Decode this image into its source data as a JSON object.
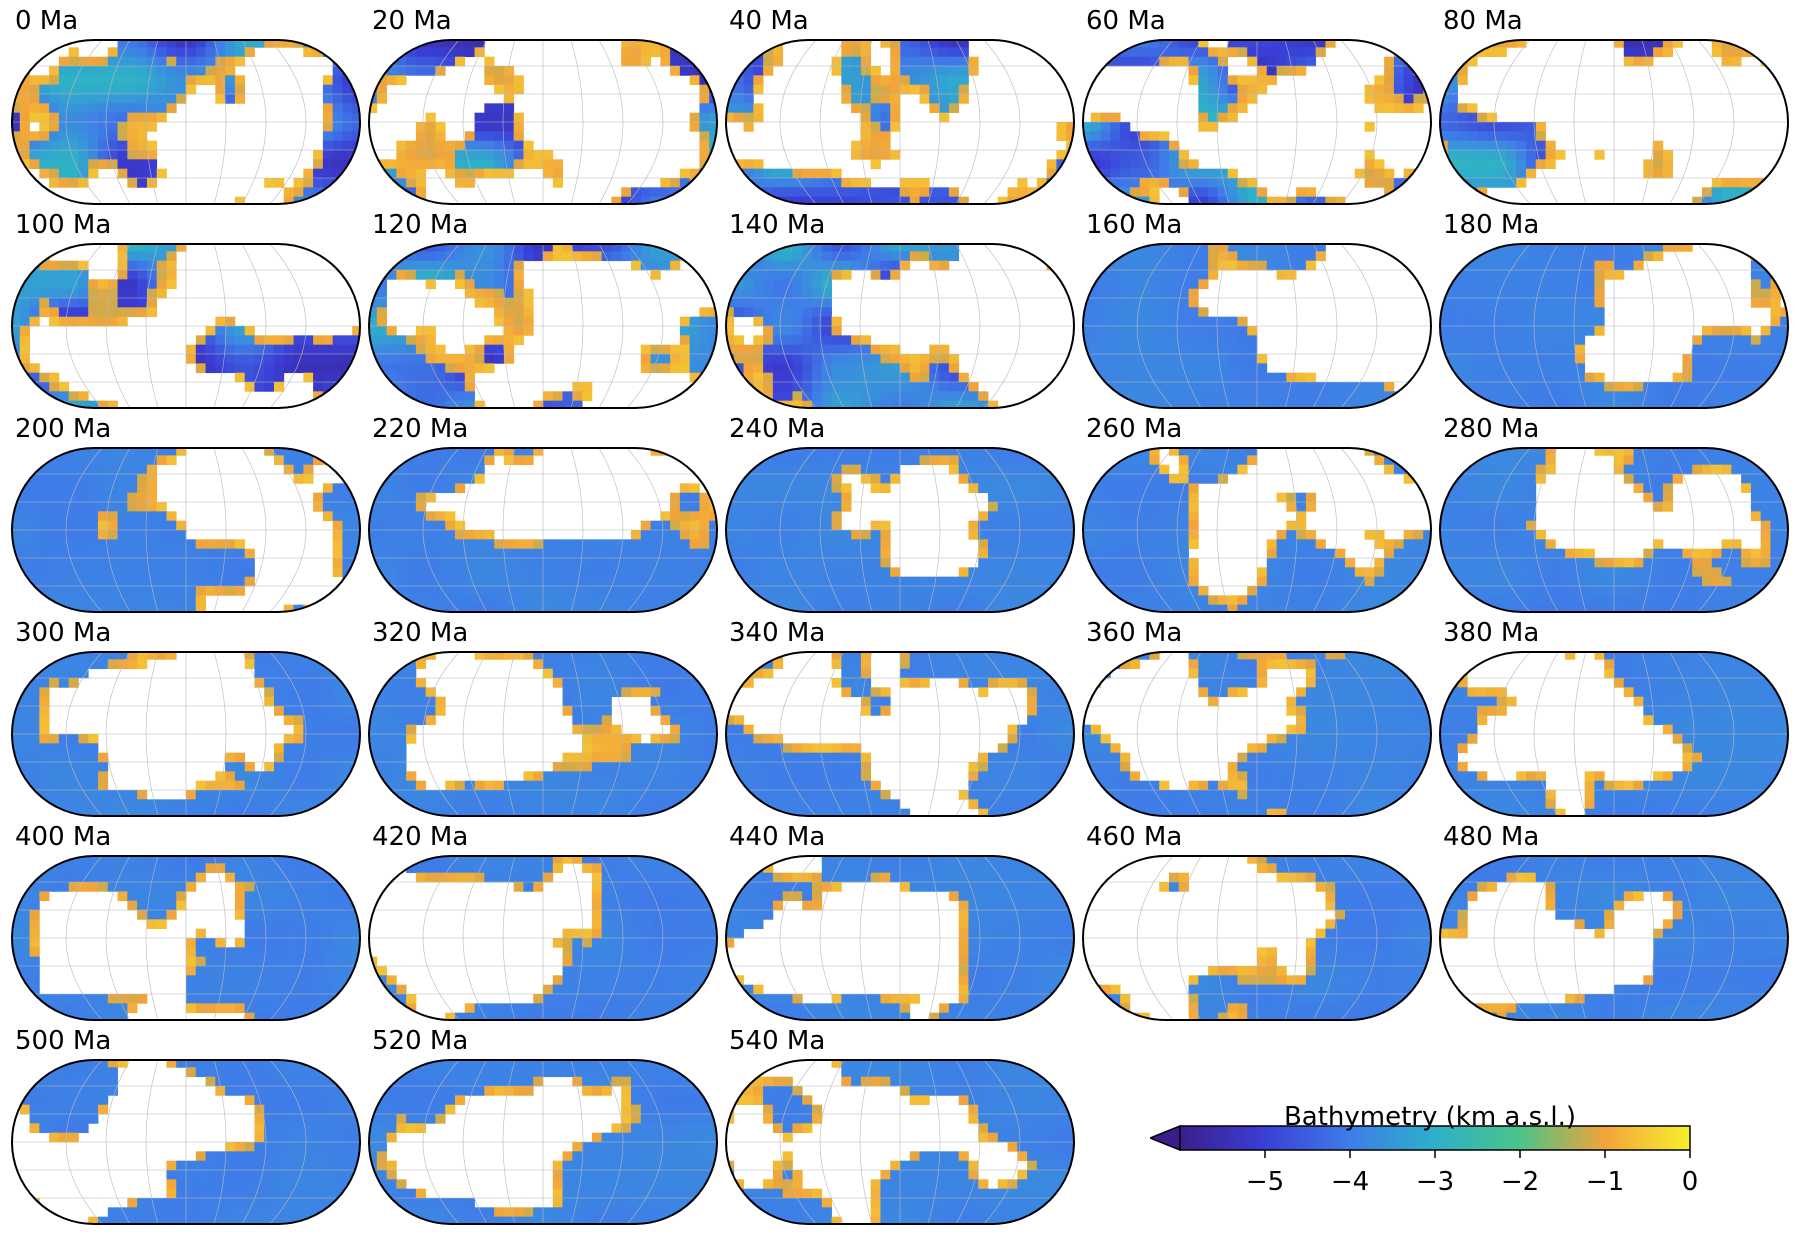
{
  "figure": {
    "panels": [
      {
        "label": "0 Ma",
        "age_ma": 0
      },
      {
        "label": "20 Ma",
        "age_ma": 20
      },
      {
        "label": "40 Ma",
        "age_ma": 40
      },
      {
        "label": "60 Ma",
        "age_ma": 60
      },
      {
        "label": "80 Ma",
        "age_ma": 80
      },
      {
        "label": "100 Ma",
        "age_ma": 100
      },
      {
        "label": "120 Ma",
        "age_ma": 120
      },
      {
        "label": "140 Ma",
        "age_ma": 140
      },
      {
        "label": "160 Ma",
        "age_ma": 160
      },
      {
        "label": "180 Ma",
        "age_ma": 180
      },
      {
        "label": "200 Ma",
        "age_ma": 200
      },
      {
        "label": "220 Ma",
        "age_ma": 220
      },
      {
        "label": "240 Ma",
        "age_ma": 240
      },
      {
        "label": "260 Ma",
        "age_ma": 260
      },
      {
        "label": "280 Ma",
        "age_ma": 280
      },
      {
        "label": "300 Ma",
        "age_ma": 300
      },
      {
        "label": "320 Ma",
        "age_ma": 320
      },
      {
        "label": "340 Ma",
        "age_ma": 340
      },
      {
        "label": "360 Ma",
        "age_ma": 360
      },
      {
        "label": "380 Ma",
        "age_ma": 380
      },
      {
        "label": "400 Ma",
        "age_ma": 400
      },
      {
        "label": "420 Ma",
        "age_ma": 420
      },
      {
        "label": "440 Ma",
        "age_ma": 440
      },
      {
        "label": "460 Ma",
        "age_ma": 460
      },
      {
        "label": "480 Ma",
        "age_ma": 480
      },
      {
        "label": "500 Ma",
        "age_ma": 500
      },
      {
        "label": "520 Ma",
        "age_ma": 520
      },
      {
        "label": "540 Ma",
        "age_ma": 540
      }
    ],
    "colorbar": {
      "title": "Bathymetry (km a.s.l.)",
      "min": -6,
      "max": 0,
      "extend": "min",
      "ticks": [
        -5,
        -4,
        -3,
        -2,
        -1,
        0
      ],
      "tick_labels": [
        "−5",
        "−4",
        "−3",
        "−2",
        "−1",
        "0"
      ],
      "colormap": [
        "#3b1e8c",
        "#3a3fd6",
        "#3f7de8",
        "#2eb0c8",
        "#4cc38a",
        "#f2a43a",
        "#f7f02c"
      ]
    }
  },
  "chart_data": {
    "type": "heatmap",
    "title": "",
    "panel_titles": [
      "0 Ma",
      "20 Ma",
      "40 Ma",
      "60 Ma",
      "80 Ma",
      "100 Ma",
      "120 Ma",
      "140 Ma",
      "160 Ma",
      "180 Ma",
      "200 Ma",
      "220 Ma",
      "240 Ma",
      "260 Ma",
      "280 Ma",
      "300 Ma",
      "320 Ma",
      "340 Ma",
      "360 Ma",
      "380 Ma",
      "400 Ma",
      "420 Ma",
      "440 Ma",
      "460 Ma",
      "480 Ma",
      "500 Ma",
      "520 Ma",
      "540 Ma"
    ],
    "layout": {
      "rows": 6,
      "cols": 5,
      "panel_count": 28,
      "projection": "Eckert IV (global)"
    },
    "value_label": "Bathymetry (km a.s.l.)",
    "colorbar_range": [
      -6,
      0
    ],
    "land_color": "#ffffff",
    "grid": true
  }
}
